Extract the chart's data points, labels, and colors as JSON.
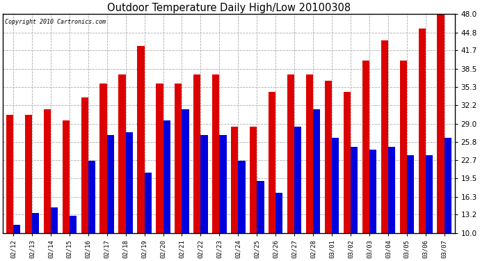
{
  "title": "Outdoor Temperature Daily High/Low 20100308",
  "copyright": "Copyright 2010 Cartronics.com",
  "dates": [
    "02/12",
    "02/13",
    "02/14",
    "02/15",
    "02/16",
    "02/17",
    "02/18",
    "02/19",
    "02/20",
    "02/21",
    "02/22",
    "02/23",
    "02/24",
    "02/25",
    "02/26",
    "02/27",
    "02/28",
    "03/01",
    "03/02",
    "03/03",
    "03/04",
    "03/05",
    "03/06",
    "03/07"
  ],
  "highs": [
    30.5,
    30.5,
    31.5,
    29.5,
    33.5,
    36.0,
    37.5,
    42.5,
    36.0,
    36.0,
    37.5,
    37.5,
    28.5,
    28.5,
    34.5,
    37.5,
    37.5,
    36.5,
    34.5,
    40.0,
    43.5,
    40.0,
    45.5,
    48.0
  ],
  "lows": [
    11.5,
    13.5,
    14.5,
    13.0,
    22.5,
    27.0,
    27.5,
    20.5,
    29.5,
    31.5,
    27.0,
    27.0,
    22.5,
    19.0,
    17.0,
    28.5,
    31.5,
    26.5,
    25.0,
    24.5,
    25.0,
    23.5,
    23.5,
    26.5
  ],
  "high_color": "#dd0000",
  "low_color": "#0000dd",
  "bg_color": "#ffffff",
  "plot_bg_color": "#ffffff",
  "grid_color": "#aaaaaa",
  "ymin": 10.0,
  "ymax": 48.0,
  "yticks": [
    10.0,
    13.2,
    16.3,
    19.5,
    22.7,
    25.8,
    29.0,
    32.2,
    35.3,
    38.5,
    41.7,
    44.8,
    48.0
  ]
}
